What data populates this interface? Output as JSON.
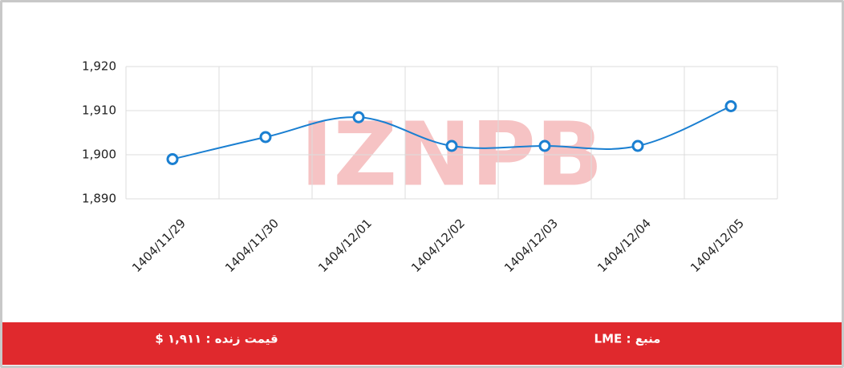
{
  "chart_data": {
    "type": "line",
    "categories": [
      "1404/11/29",
      "1404/11/30",
      "1404/12/01",
      "1404/12/02",
      "1404/12/03",
      "1404/12/04",
      "1404/12/05"
    ],
    "series": [
      {
        "color": "#1a7fd1",
        "values": [
          1899,
          1904,
          1908.5,
          1902,
          1902,
          1902,
          1911
        ]
      }
    ],
    "ylim": [
      1890,
      1920
    ],
    "yticks": [
      {
        "value": 1890,
        "label": "1,890"
      },
      {
        "value": 1900,
        "label": "1,900"
      },
      {
        "value": 1910,
        "label": "1,910"
      },
      {
        "value": 1920,
        "label": "1,920"
      }
    ],
    "grid": true,
    "watermark": "IZNPB"
  },
  "footer": {
    "price": "قیمت زنده : ۱,۹۱۱ $",
    "source": "منبع : LME"
  }
}
